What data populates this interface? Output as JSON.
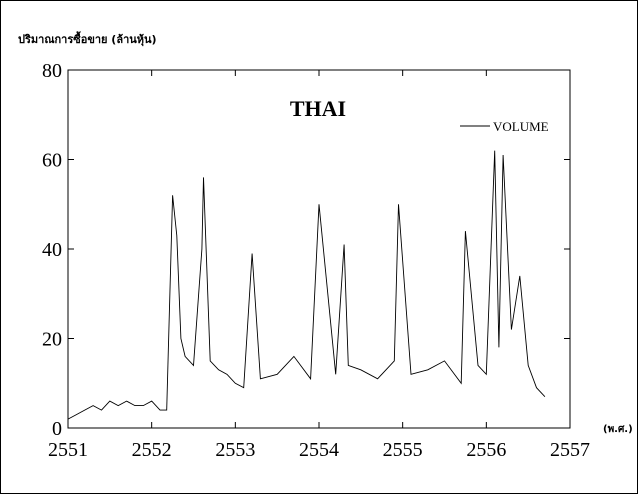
{
  "chart_data": {
    "type": "line",
    "title": "THAI",
    "ylabel": "ปริมาณการซื้อขาย (ล้านหุ้น)",
    "xunit": "(พ.ศ.)",
    "xlim": [
      2551,
      2557
    ],
    "ylim": [
      0,
      80
    ],
    "xticks": [
      2551,
      2552,
      2553,
      2554,
      2555,
      2556,
      2557
    ],
    "yticks": [
      0,
      20,
      40,
      60,
      80
    ],
    "legend_position": "top-right",
    "series": [
      {
        "name": "VOLUME",
        "color": "#000000",
        "x": [
          2551.0,
          2551.1,
          2551.2,
          2551.3,
          2551.4,
          2551.5,
          2551.6,
          2551.7,
          2551.8,
          2551.9,
          2552.0,
          2552.1,
          2552.18,
          2552.2,
          2552.25,
          2552.3,
          2552.35,
          2552.4,
          2552.5,
          2552.6,
          2552.62,
          2552.7,
          2552.8,
          2552.9,
          2553.0,
          2553.1,
          2553.2,
          2553.3,
          2553.5,
          2553.7,
          2553.9,
          2554.0,
          2554.2,
          2554.3,
          2554.35,
          2554.5,
          2554.7,
          2554.9,
          2554.95,
          2555.1,
          2555.3,
          2555.5,
          2555.7,
          2555.75,
          2555.9,
          2556.0,
          2556.1,
          2556.15,
          2556.2,
          2556.3,
          2556.4,
          2556.5,
          2556.6,
          2556.7
        ],
        "y": [
          2,
          3,
          4,
          5,
          4,
          6,
          5,
          6,
          5,
          5,
          6,
          4,
          4,
          18,
          52,
          43,
          20,
          16,
          14,
          40,
          56,
          15,
          13,
          12,
          10,
          9,
          39,
          11,
          12,
          16,
          11,
          50,
          12,
          41,
          14,
          13,
          11,
          15,
          50,
          12,
          13,
          15,
          10,
          44,
          14,
          12,
          62,
          18,
          61,
          22,
          34,
          14,
          9,
          7
        ]
      }
    ]
  }
}
